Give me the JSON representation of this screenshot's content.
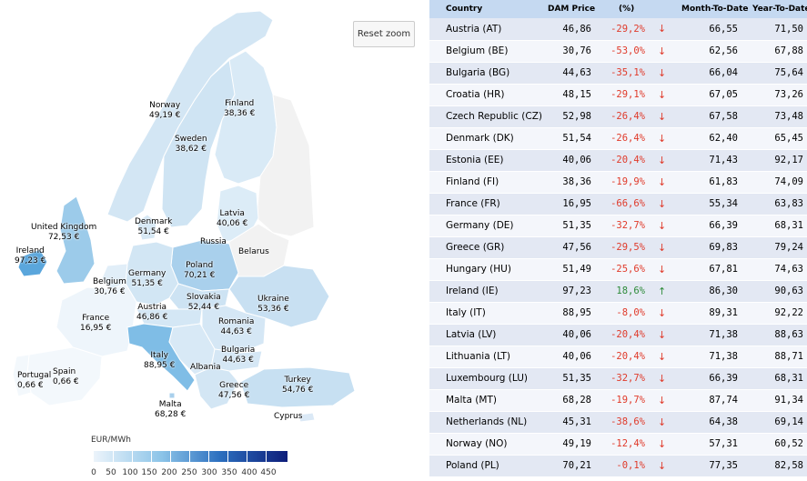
{
  "map": {
    "reset_zoom_label": "Reset zoom",
    "legend": {
      "title": "EUR/MWh",
      "ticks": [
        "0",
        "50",
        "100",
        "150",
        "200",
        "250",
        "300",
        "350",
        "400",
        "450"
      ]
    },
    "labels": [
      {
        "name": "Norway",
        "value": "49,19 €"
      },
      {
        "name": "Finland",
        "value": "38,36 €"
      },
      {
        "name": "Sweden",
        "value": "38,62 €"
      },
      {
        "name": "Denmark",
        "value": "51,54 €"
      },
      {
        "name": "Latvia",
        "value": "40,06 €"
      },
      {
        "name": "Russia",
        "value": ""
      },
      {
        "name": "Belarus",
        "value": ""
      },
      {
        "name": "United Kingdom",
        "value": "72,53 €"
      },
      {
        "name": "Ireland",
        "value": "97,23 €"
      },
      {
        "name": "Poland",
        "value": "70,21 €"
      },
      {
        "name": "Germany",
        "value": "51,35 €"
      },
      {
        "name": "Belgium",
        "value": "30,76 €"
      },
      {
        "name": "Ukraine",
        "value": "53,36 €"
      },
      {
        "name": "Slovakia",
        "value": "52,44 €"
      },
      {
        "name": "Austria",
        "value": "46,86 €"
      },
      {
        "name": "France",
        "value": "16,95 €"
      },
      {
        "name": "Romania",
        "value": "44,63 €"
      },
      {
        "name": "Bulgaria",
        "value": "44,63 €"
      },
      {
        "name": "Italy",
        "value": "88,95 €"
      },
      {
        "name": "Albania",
        "value": ""
      },
      {
        "name": "Portugal",
        "value": "0,66 €"
      },
      {
        "name": "Spain",
        "value": "0,66 €"
      },
      {
        "name": "Turkey",
        "value": "54,76 €"
      },
      {
        "name": "Greece",
        "value": "47,56 €"
      },
      {
        "name": "Malta",
        "value": "68,28 €"
      },
      {
        "name": "Cyprus",
        "value": ""
      }
    ]
  },
  "table": {
    "headers": [
      "Country",
      "DAM Price",
      "(%)",
      "Month-To-Date",
      "Year-To-Date"
    ],
    "rows": [
      {
        "country": "Austria (AT)",
        "price": "46,86",
        "pct": "-29,2%",
        "dir": "down",
        "mtd": "66,55",
        "ytd": "71,50"
      },
      {
        "country": "Belgium (BE)",
        "price": "30,76",
        "pct": "-53,0%",
        "dir": "down",
        "mtd": "62,56",
        "ytd": "67,88"
      },
      {
        "country": "Bulgaria (BG)",
        "price": "44,63",
        "pct": "-35,1%",
        "dir": "down",
        "mtd": "66,04",
        "ytd": "75,64"
      },
      {
        "country": "Croatia (HR)",
        "price": "48,15",
        "pct": "-29,1%",
        "dir": "down",
        "mtd": "67,05",
        "ytd": "73,26"
      },
      {
        "country": "Czech Republic (CZ)",
        "price": "52,98",
        "pct": "-26,4%",
        "dir": "down",
        "mtd": "67,58",
        "ytd": "73,48"
      },
      {
        "country": "Denmark (DK)",
        "price": "51,54",
        "pct": "-26,4%",
        "dir": "down",
        "mtd": "62,40",
        "ytd": "65,45"
      },
      {
        "country": "Estonia (EE)",
        "price": "40,06",
        "pct": "-20,4%",
        "dir": "down",
        "mtd": "71,43",
        "ytd": "92,17"
      },
      {
        "country": "Finland (FI)",
        "price": "38,36",
        "pct": "-19,9%",
        "dir": "down",
        "mtd": "61,83",
        "ytd": "74,09"
      },
      {
        "country": "France (FR)",
        "price": "16,95",
        "pct": "-66,6%",
        "dir": "down",
        "mtd": "55,34",
        "ytd": "63,83"
      },
      {
        "country": "Germany (DE)",
        "price": "51,35",
        "pct": "-32,7%",
        "dir": "down",
        "mtd": "66,39",
        "ytd": "68,31"
      },
      {
        "country": "Greece (GR)",
        "price": "47,56",
        "pct": "-29,5%",
        "dir": "down",
        "mtd": "69,83",
        "ytd": "79,24"
      },
      {
        "country": "Hungary (HU)",
        "price": "51,49",
        "pct": "-25,6%",
        "dir": "down",
        "mtd": "67,81",
        "ytd": "74,63"
      },
      {
        "country": "Ireland (IE)",
        "price": "97,23",
        "pct": "18,6%",
        "dir": "up",
        "mtd": "86,30",
        "ytd": "90,63"
      },
      {
        "country": "Italy (IT)",
        "price": "88,95",
        "pct": "-8,0%",
        "dir": "down",
        "mtd": "89,31",
        "ytd": "92,22"
      },
      {
        "country": "Latvia (LV)",
        "price": "40,06",
        "pct": "-20,4%",
        "dir": "down",
        "mtd": "71,38",
        "ytd": "88,63"
      },
      {
        "country": "Lithuania (LT)",
        "price": "40,06",
        "pct": "-20,4%",
        "dir": "down",
        "mtd": "71,38",
        "ytd": "88,71"
      },
      {
        "country": "Luxembourg (LU)",
        "price": "51,35",
        "pct": "-32,7%",
        "dir": "down",
        "mtd": "66,39",
        "ytd": "68,31"
      },
      {
        "country": "Malta (MT)",
        "price": "68,28",
        "pct": "-19,7%",
        "dir": "down",
        "mtd": "87,74",
        "ytd": "91,34"
      },
      {
        "country": "Netherlands (NL)",
        "price": "45,31",
        "pct": "-38,6%",
        "dir": "down",
        "mtd": "64,38",
        "ytd": "69,14"
      },
      {
        "country": "Norway (NO)",
        "price": "49,19",
        "pct": "-12,4%",
        "dir": "down",
        "mtd": "57,31",
        "ytd": "60,52"
      },
      {
        "country": "Poland (PL)",
        "price": "70,21",
        "pct": "-0,1%",
        "dir": "down",
        "mtd": "77,35",
        "ytd": "82,58"
      }
    ]
  },
  "colors": {
    "up": "#2e8b3a",
    "down": "#e03a2a",
    "header_bg": "#c5d9f1",
    "low_price": "#eef5fb",
    "mid_price": "#b9d8ef",
    "high_price": "#5aa6dc",
    "no_data": "#f2f2f2"
  }
}
